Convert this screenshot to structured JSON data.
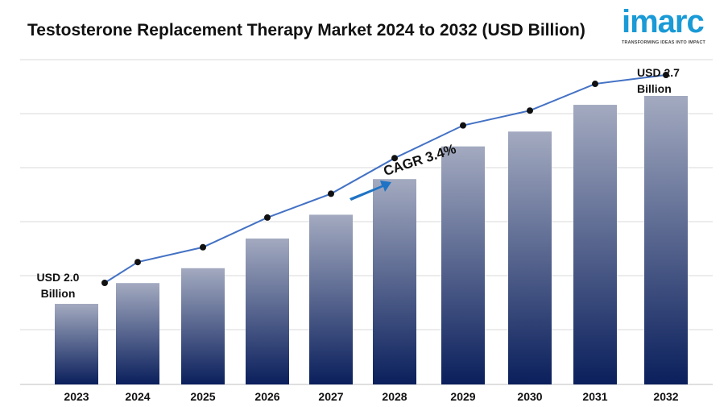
{
  "title": "Testosterone Replacement Therapy Market 2024 to 2032 (USD Billion)",
  "logo": {
    "word": "imarc",
    "tagline": "TRANSFORMING IDEAS INTO IMPACT",
    "color": "#1a9ad6"
  },
  "annotations": {
    "start_value": "USD 2.0",
    "start_unit": "Billion",
    "end_value": "USD 2.7",
    "end_unit": "Billion",
    "cagr": "CAGR 3.4%"
  },
  "chart_data": {
    "type": "bar",
    "categories": [
      "2023",
      "2024",
      "2025",
      "2026",
      "2027",
      "2028",
      "2029",
      "2030",
      "2031",
      "2032"
    ],
    "values": [
      2.0,
      2.07,
      2.12,
      2.22,
      2.3,
      2.42,
      2.53,
      2.58,
      2.67,
      2.7
    ],
    "series": [
      {
        "type": "bar",
        "values": [
          2.0,
          2.07,
          2.12,
          2.22,
          2.3,
          2.42,
          2.53,
          2.58,
          2.67,
          2.7
        ]
      },
      {
        "type": "line",
        "values": [
          2.0,
          2.07,
          2.12,
          2.22,
          2.3,
          2.42,
          2.53,
          2.58,
          2.67,
          2.7
        ]
      }
    ],
    "grid": true,
    "colors": {
      "bar_top": "#a3aac0",
      "bar_bottom": "#0a1f5c",
      "line": "#4472c4",
      "marker": "#111111",
      "arrow": "#1f73c4",
      "grid": "#d9d9d9"
    }
  }
}
